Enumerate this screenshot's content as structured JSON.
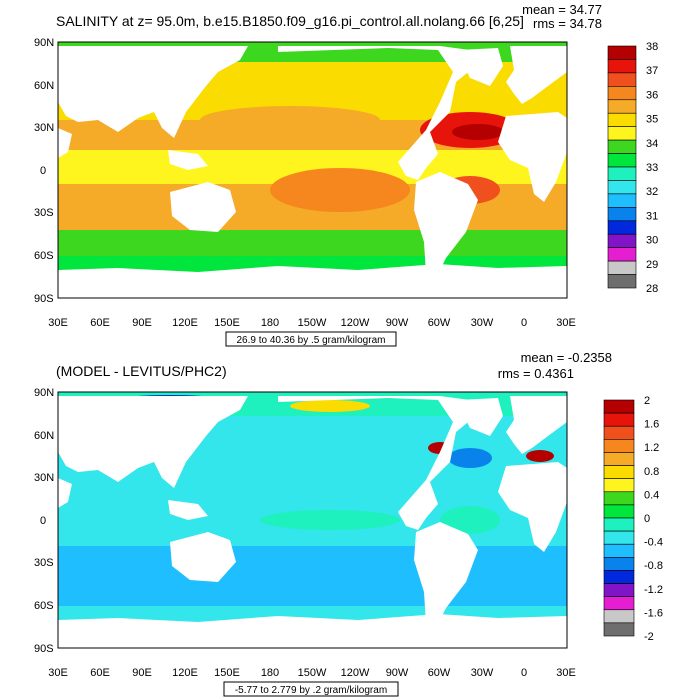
{
  "panels": [
    {
      "title": "SALINITY at z=  95.0m, b.e15.B1850.f09_g16.pi_control.all.nolang.66 [6,25]",
      "mean": "mean = 34.77",
      "rms": "rms = 34.78",
      "range_label": "26.9 to 40.36 by .5 gram/kilogram",
      "lat_labels": [
        "90N",
        "60N",
        "30N",
        "0",
        "30S",
        "60S",
        "90S"
      ],
      "lon_labels": [
        "30E",
        "60E",
        "90E",
        "120E",
        "150E",
        "180",
        "150W",
        "120W",
        "90W",
        "60W",
        "30W",
        "0",
        "30E"
      ],
      "colorbar": {
        "labels": [
          "38",
          "37",
          "36",
          "35",
          "34",
          "33",
          "32",
          "31",
          "30",
          "29",
          "28"
        ],
        "colors": [
          "#b40000",
          "#e6140a",
          "#f0501e",
          "#f5871e",
          "#f5aa28",
          "#fadc00",
          "#fff51e",
          "#3cd71e",
          "#00e63c",
          "#1ef0be",
          "#32e6eb",
          "#1ebeff",
          "#0a82eb",
          "#0028dc",
          "#8214c8",
          "#e61ed2",
          "#c8c8c8",
          "#6e6e6e"
        ]
      }
    },
    {
      "title": "(MODEL - LEVITUS/PHC2)",
      "mean": "mean = -0.2358",
      "rms": "rms = 0.4361",
      "range_label": "-5.77 to 2.779 by .2 gram/kilogram",
      "lat_labels": [
        "90N",
        "60N",
        "30N",
        "0",
        "30S",
        "60S",
        "90S"
      ],
      "lon_labels": [
        "30E",
        "60E",
        "90E",
        "120E",
        "150E",
        "180",
        "150W",
        "120W",
        "90W",
        "60W",
        "30W",
        "0",
        "30E"
      ],
      "colorbar": {
        "labels": [
          "2",
          "1.6",
          "1.2",
          "0.8",
          "0.4",
          "0",
          "-0.4",
          "-0.8",
          "-1.2",
          "-1.6",
          "-2"
        ],
        "colors": [
          "#b40000",
          "#e6140a",
          "#f0501e",
          "#f5871e",
          "#f5aa28",
          "#fadc00",
          "#fff51e",
          "#3cd71e",
          "#00e63c",
          "#1ef0be",
          "#32e6eb",
          "#1ebeff",
          "#0a82eb",
          "#0028dc",
          "#8214c8",
          "#e61ed2",
          "#c8c8c8",
          "#6e6e6e"
        ]
      }
    }
  ]
}
